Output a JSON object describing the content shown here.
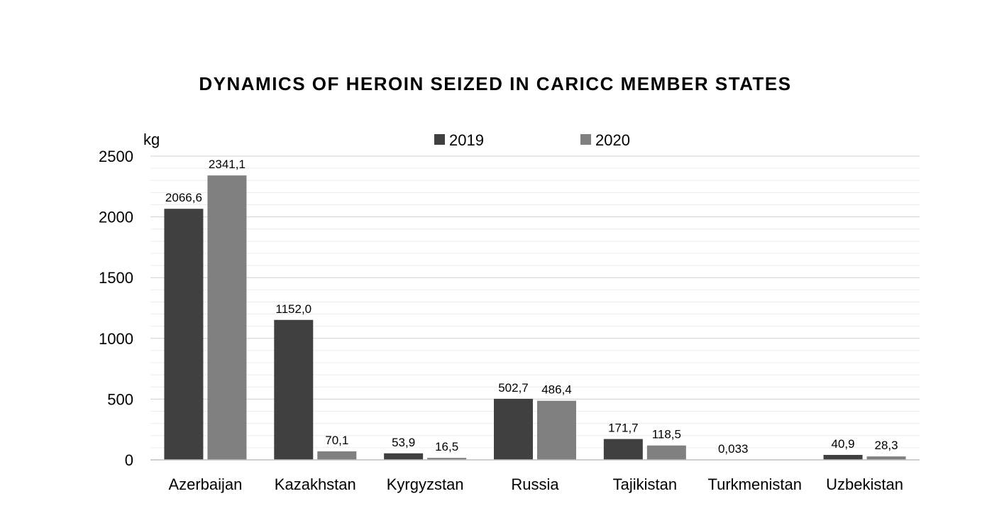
{
  "chart_data": {
    "type": "bar",
    "title": "DYNAMICS OF HEROIN SEIZED IN CARICC MEMBER STATES",
    "unit_label": "kg",
    "categories": [
      "Azerbaijan",
      "Kazakhstan",
      "Kyrgyzstan",
      "Russia",
      "Tajikistan",
      "Turkmenistan",
      "Uzbekistan"
    ],
    "series": [
      {
        "name": "2019",
        "color": "#404040",
        "values": [
          2066.6,
          1152.0,
          53.9,
          502.7,
          171.7,
          0.033,
          40.9
        ],
        "labels": [
          "2066,6",
          "1152,0",
          "53,9",
          "502,7",
          "171,7",
          "0,033",
          "40,9"
        ]
      },
      {
        "name": "2020",
        "color": "#808080",
        "values": [
          2341.1,
          70.1,
          16.5,
          486.4,
          118.5,
          null,
          28.3
        ],
        "labels": [
          "2341,1",
          "70,1",
          "16,5",
          "486,4",
          "118,5",
          null,
          "28,3"
        ]
      }
    ],
    "ylim": [
      0,
      2500
    ],
    "yticks": [
      0,
      500,
      1000,
      1500,
      2000,
      2500
    ],
    "yticks_labels": [
      "0",
      "500",
      "1000",
      "1500",
      "2000",
      "2500"
    ],
    "grid": true,
    "legend_position": "top-center"
  }
}
